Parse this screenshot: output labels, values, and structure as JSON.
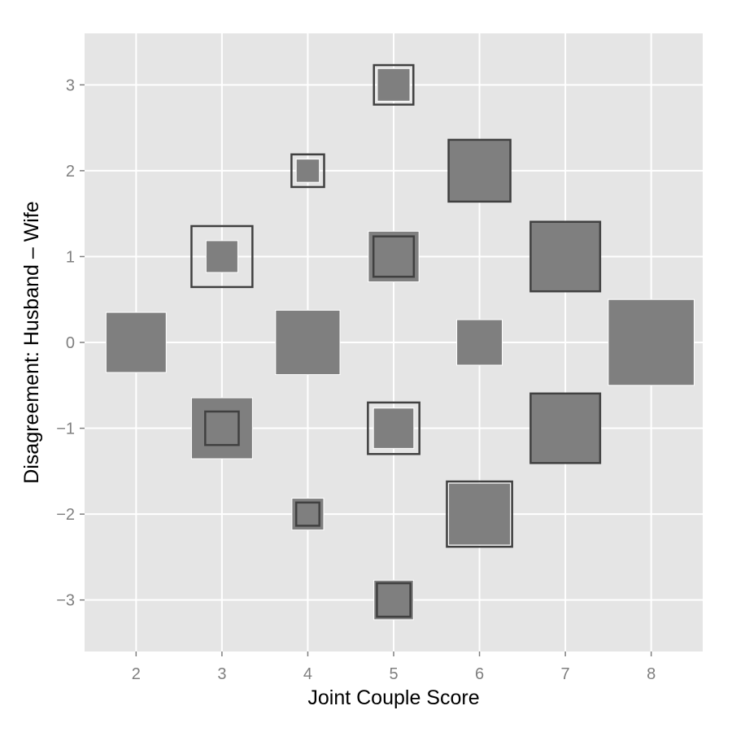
{
  "colors": {
    "panel": "#e5e5e5",
    "grid": "#ffffff",
    "fill": "#7f7f7f",
    "outline": "#404040",
    "tick_text": "#7f7f7f",
    "title_text": "#000000"
  },
  "chart_data": {
    "type": "scatter",
    "marker": "square",
    "xlabel": "Joint Couple Score",
    "ylabel": "Disagreement: Husband – Wife",
    "xlim": [
      1.4,
      8.6
    ],
    "ylim": [
      -3.6,
      3.6
    ],
    "x_ticks": [
      2,
      3,
      4,
      5,
      6,
      7,
      8
    ],
    "y_ticks": [
      -3,
      -2,
      -1,
      0,
      1,
      2,
      3
    ],
    "x_tick_labels": [
      "2",
      "3",
      "4",
      "5",
      "6",
      "7",
      "8"
    ],
    "y_tick_labels": [
      "−3",
      "−2",
      "−1",
      "0",
      "1",
      "2",
      "3"
    ],
    "grid": true,
    "points": [
      {
        "x": 2,
        "y": 0,
        "fill_size": 0.7,
        "outline_size": 0
      },
      {
        "x": 3,
        "y": 1,
        "fill_size": 0.37,
        "outline_size": 0.71
      },
      {
        "x": 3,
        "y": -1,
        "fill_size": 0.71,
        "outline_size": 0.39
      },
      {
        "x": 4,
        "y": 2,
        "fill_size": 0.27,
        "outline_size": 0.38
      },
      {
        "x": 4,
        "y": 0,
        "fill_size": 0.75,
        "outline_size": 0
      },
      {
        "x": 4,
        "y": -2,
        "fill_size": 0.37,
        "outline_size": 0.27
      },
      {
        "x": 5,
        "y": 3,
        "fill_size": 0.38,
        "outline_size": 0.46
      },
      {
        "x": 5,
        "y": 1,
        "fill_size": 0.59,
        "outline_size": 0.47
      },
      {
        "x": 5,
        "y": -1,
        "fill_size": 0.47,
        "outline_size": 0.6
      },
      {
        "x": 5,
        "y": -3,
        "fill_size": 0.46,
        "outline_size": 0.39
      },
      {
        "x": 6,
        "y": 2,
        "fill_size": 0.72,
        "outline_size": 0.72
      },
      {
        "x": 6,
        "y": 0,
        "fill_size": 0.53,
        "outline_size": 0
      },
      {
        "x": 6,
        "y": -2,
        "fill_size": 0.72,
        "outline_size": 0.76
      },
      {
        "x": 7,
        "y": 1,
        "fill_size": 0.81,
        "outline_size": 0.81
      },
      {
        "x": 7,
        "y": -1,
        "fill_size": 0.81,
        "outline_size": 0.81
      },
      {
        "x": 8,
        "y": 0,
        "fill_size": 1.0,
        "outline_size": 0
      }
    ]
  }
}
